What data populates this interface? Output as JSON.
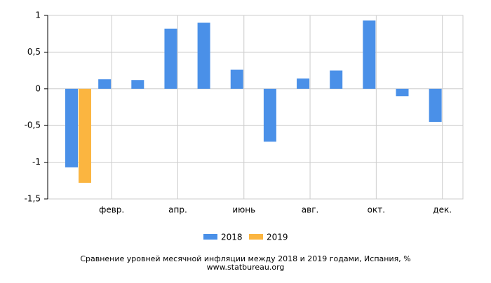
{
  "chart_data": {
    "type": "bar",
    "title": "Сравнение уровней месячной инфляции между 2018 и 2019 годами, Испания, %",
    "subtitle": "www.statbureau.org",
    "categories": [
      null,
      "февр.",
      null,
      "апр.",
      null,
      "июнь",
      null,
      "авг.",
      null,
      "окт.",
      null,
      "дек."
    ],
    "series": [
      {
        "name": "2018",
        "color": "#4a90e8",
        "values": [
          -1.07,
          0.13,
          0.12,
          0.82,
          0.9,
          0.26,
          -0.72,
          0.14,
          0.25,
          0.93,
          -0.1,
          -0.45
        ]
      },
      {
        "name": "2019",
        "color": "#fbb540",
        "values": [
          -1.28,
          null,
          null,
          null,
          null,
          null,
          null,
          null,
          null,
          null,
          null,
          null
        ]
      }
    ],
    "ylim": [
      -1.5,
      1
    ],
    "yticks": [
      {
        "value": -1.5,
        "label": "-1,5"
      },
      -1,
      {
        "value": -0.5,
        "label": "-0,5"
      },
      0,
      {
        "value": 0.5,
        "label": "0,5"
      },
      1
    ],
    "grid": true,
    "legend": "bottom"
  }
}
